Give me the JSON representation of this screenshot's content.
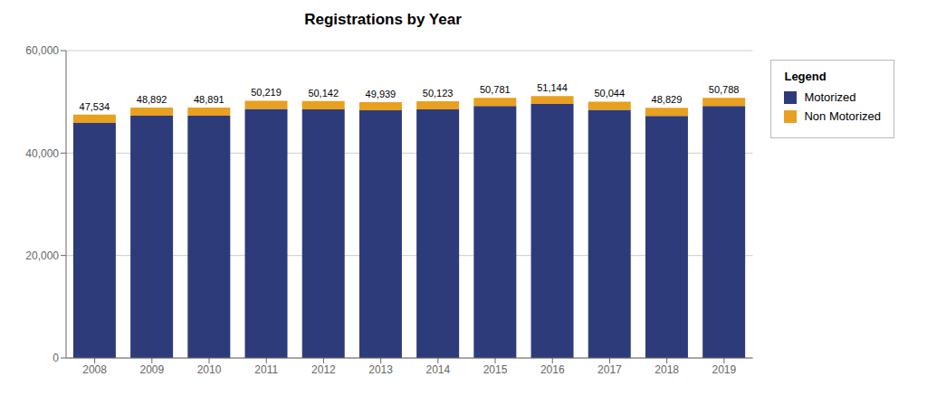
{
  "chart_data": {
    "type": "bar",
    "title": "Registrations by Year",
    "categories": [
      "2008",
      "2009",
      "2010",
      "2011",
      "2012",
      "2013",
      "2014",
      "2015",
      "2016",
      "2017",
      "2018",
      "2019"
    ],
    "series": [
      {
        "name": "Motorized",
        "color": "#2E3B7A",
        "values": [
          45900,
          47300,
          47300,
          48600,
          48550,
          48350,
          48550,
          49200,
          49600,
          48450,
          47250,
          49200
        ]
      },
      {
        "name": "Non Motorized",
        "color": "#E8A020",
        "values": [
          1634,
          1592,
          1591,
          1619,
          1592,
          1589,
          1573,
          1581,
          1544,
          1594,
          1579,
          1588
        ]
      }
    ],
    "stacked": true,
    "totals": [
      47534,
      48892,
      48891,
      50219,
      50142,
      49939,
      50123,
      50781,
      51144,
      50044,
      48829,
      50788
    ],
    "total_labels": [
      "47,534",
      "48,892",
      "48,891",
      "50,219",
      "50,142",
      "49,939",
      "50,123",
      "50,781",
      "51,144",
      "50,044",
      "48,829",
      "50,788"
    ],
    "ylim": [
      0,
      60000
    ],
    "yticks": [
      0,
      {
        "value": 20000,
        "label": "20,000"
      },
      {
        "value": 40000,
        "label": "40,000"
      },
      {
        "value": 60000,
        "label": "60,000"
      }
    ],
    "grid": true,
    "legend": "right",
    "legend_title": "Legend"
  }
}
